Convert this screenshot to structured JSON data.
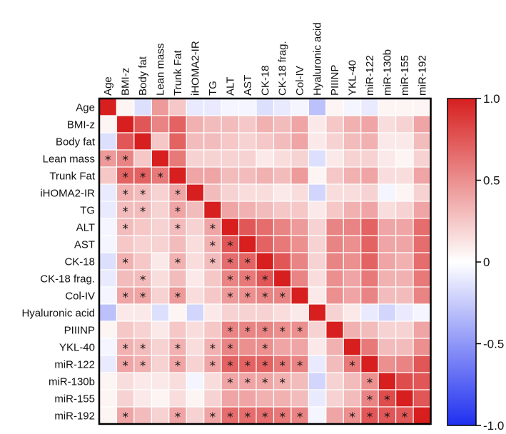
{
  "chart_data": {
    "type": "heatmap",
    "title": "",
    "variables": [
      "Age",
      "BMI-z",
      "Body fat",
      "Lean mass",
      "Trunk Fat",
      "iHOMA2-IR",
      "TG",
      "ALT",
      "AST",
      "CK-18",
      "CK-18 frag.",
      "Col-IV",
      "Hyaluronic acid",
      "PIIINP",
      "YKL-40",
      "miR-122",
      "miR-130b",
      "miR-155",
      "miR-192"
    ],
    "color_scale": {
      "min": -1.0,
      "max": 1.0,
      "ticks": [
        1.0,
        0.5,
        0,
        -0.5,
        -1.0
      ],
      "tick_labels": [
        "1.0",
        "0.5",
        "0",
        "-0.5",
        "-1.0"
      ],
      "low_color": "#1f2ff0",
      "mid_color": "#ffffff",
      "high_color": "#d71f1f"
    },
    "matrix": [
      [
        1.0,
        0.05,
        -0.15,
        0.45,
        0.25,
        -0.1,
        -0.1,
        -0.05,
        -0.05,
        -0.15,
        -0.1,
        -0.05,
        -0.3,
        0.05,
        -0.05,
        -0.1,
        0.05,
        0.05,
        0.05
      ],
      [
        0.05,
        1.0,
        0.75,
        0.55,
        0.7,
        0.35,
        0.3,
        0.3,
        0.25,
        0.35,
        0.3,
        0.4,
        0.1,
        0.25,
        0.35,
        0.4,
        0.15,
        0.2,
        0.4
      ],
      [
        -0.15,
        0.75,
        1.0,
        0.25,
        0.7,
        0.3,
        0.3,
        0.25,
        0.2,
        0.25,
        0.3,
        0.4,
        0.1,
        0.2,
        0.3,
        0.35,
        0.1,
        0.1,
        0.3
      ],
      [
        0.45,
        0.55,
        0.25,
        1.0,
        0.6,
        0.2,
        0.2,
        0.2,
        0.2,
        0.1,
        0.15,
        0.2,
        -0.15,
        0.1,
        0.2,
        0.2,
        0.1,
        0.05,
        0.2
      ],
      [
        0.25,
        0.7,
        0.7,
        0.6,
        1.0,
        0.4,
        0.4,
        0.3,
        0.3,
        0.35,
        0.3,
        0.45,
        0.05,
        0.25,
        0.35,
        0.4,
        0.15,
        0.15,
        0.4
      ],
      [
        -0.1,
        0.35,
        0.3,
        0.2,
        0.4,
        1.0,
        0.3,
        0.2,
        0.15,
        0.15,
        0.1,
        0.15,
        -0.2,
        0.15,
        0.15,
        0.2,
        -0.05,
        0.05,
        0.2
      ],
      [
        -0.1,
        0.3,
        0.3,
        0.2,
        0.4,
        0.3,
        1.0,
        0.4,
        0.35,
        0.3,
        0.25,
        0.25,
        0.1,
        0.25,
        0.35,
        0.4,
        0.15,
        0.2,
        0.4
      ],
      [
        -0.05,
        0.3,
        0.25,
        0.2,
        0.3,
        0.2,
        0.4,
        1.0,
        0.75,
        0.65,
        0.55,
        0.45,
        0.2,
        0.55,
        0.55,
        0.7,
        0.4,
        0.4,
        0.65
      ],
      [
        -0.05,
        0.25,
        0.2,
        0.2,
        0.3,
        0.15,
        0.35,
        0.75,
        1.0,
        0.7,
        0.6,
        0.5,
        0.2,
        0.55,
        0.5,
        0.7,
        0.4,
        0.4,
        0.65
      ],
      [
        -0.15,
        0.35,
        0.25,
        0.1,
        0.35,
        0.15,
        0.3,
        0.65,
        0.7,
        1.0,
        0.75,
        0.55,
        0.2,
        0.55,
        0.5,
        0.7,
        0.4,
        0.35,
        0.65
      ],
      [
        -0.1,
        0.3,
        0.3,
        0.15,
        0.3,
        0.1,
        0.25,
        0.55,
        0.6,
        0.75,
        1.0,
        0.55,
        0.15,
        0.5,
        0.4,
        0.6,
        0.35,
        0.35,
        0.6
      ],
      [
        -0.05,
        0.4,
        0.4,
        0.2,
        0.45,
        0.15,
        0.25,
        0.45,
        0.5,
        0.55,
        0.55,
        1.0,
        0.1,
        0.5,
        0.4,
        0.55,
        0.3,
        0.3,
        0.55
      ],
      [
        -0.3,
        0.1,
        0.1,
        -0.15,
        0.05,
        -0.2,
        0.1,
        0.2,
        0.2,
        0.2,
        0.15,
        0.1,
        1.0,
        0.2,
        0.1,
        -0.1,
        -0.2,
        -0.1,
        -0.05
      ],
      [
        0.05,
        0.25,
        0.2,
        0.1,
        0.25,
        0.15,
        0.25,
        0.55,
        0.55,
        0.55,
        0.5,
        0.5,
        0.2,
        1.0,
        0.35,
        0.3,
        0.2,
        0.2,
        0.4
      ],
      [
        -0.05,
        0.35,
        0.3,
        0.2,
        0.35,
        0.15,
        0.35,
        0.55,
        0.5,
        0.5,
        0.4,
        0.4,
        0.1,
        0.35,
        1.0,
        0.6,
        0.3,
        0.3,
        0.5
      ],
      [
        -0.1,
        0.4,
        0.35,
        0.2,
        0.4,
        0.2,
        0.4,
        0.7,
        0.7,
        0.7,
        0.6,
        0.55,
        -0.1,
        0.3,
        0.6,
        1.0,
        0.5,
        0.55,
        0.75
      ],
      [
        0.05,
        0.15,
        0.1,
        0.1,
        0.15,
        -0.05,
        0.15,
        0.4,
        0.4,
        0.4,
        0.35,
        0.3,
        -0.2,
        0.2,
        0.3,
        0.5,
        1.0,
        0.8,
        0.75
      ],
      [
        0.05,
        0.2,
        0.1,
        0.05,
        0.15,
        0.05,
        0.2,
        0.4,
        0.4,
        0.35,
        0.35,
        0.3,
        -0.1,
        0.2,
        0.3,
        0.55,
        0.8,
        1.0,
        0.75
      ],
      [
        0.05,
        0.4,
        0.3,
        0.2,
        0.4,
        0.2,
        0.4,
        0.65,
        0.65,
        0.65,
        0.6,
        0.55,
        -0.05,
        0.4,
        0.5,
        0.75,
        0.75,
        0.75,
        1.0
      ]
    ],
    "significance_marker": "*",
    "significant_cells": [
      [
        3,
        0
      ],
      [
        3,
        1
      ],
      [
        4,
        1
      ],
      [
        4,
        2
      ],
      [
        4,
        3
      ],
      [
        5,
        1
      ],
      [
        5,
        2
      ],
      [
        5,
        4
      ],
      [
        6,
        1
      ],
      [
        6,
        2
      ],
      [
        6,
        4
      ],
      [
        7,
        1
      ],
      [
        7,
        4
      ],
      [
        7,
        6
      ],
      [
        8,
        6
      ],
      [
        8,
        7
      ],
      [
        9,
        1
      ],
      [
        9,
        4
      ],
      [
        9,
        6
      ],
      [
        9,
        7
      ],
      [
        9,
        8
      ],
      [
        10,
        2
      ],
      [
        10,
        7
      ],
      [
        10,
        8
      ],
      [
        10,
        9
      ],
      [
        11,
        1
      ],
      [
        11,
        2
      ],
      [
        11,
        4
      ],
      [
        11,
        7
      ],
      [
        11,
        8
      ],
      [
        11,
        9
      ],
      [
        11,
        10
      ],
      [
        13,
        7
      ],
      [
        13,
        8
      ],
      [
        13,
        9
      ],
      [
        13,
        10
      ],
      [
        13,
        11
      ],
      [
        14,
        1
      ],
      [
        14,
        2
      ],
      [
        14,
        4
      ],
      [
        14,
        6
      ],
      [
        14,
        7
      ],
      [
        14,
        9
      ],
      [
        15,
        1
      ],
      [
        15,
        2
      ],
      [
        15,
        4
      ],
      [
        15,
        6
      ],
      [
        15,
        7
      ],
      [
        15,
        8
      ],
      [
        15,
        9
      ],
      [
        15,
        10
      ],
      [
        15,
        11
      ],
      [
        15,
        14
      ],
      [
        16,
        7
      ],
      [
        16,
        8
      ],
      [
        16,
        9
      ],
      [
        16,
        10
      ],
      [
        16,
        15
      ],
      [
        17,
        15
      ],
      [
        17,
        16
      ],
      [
        18,
        1
      ],
      [
        18,
        4
      ],
      [
        18,
        6
      ],
      [
        18,
        7
      ],
      [
        18,
        8
      ],
      [
        18,
        9
      ],
      [
        18,
        10
      ],
      [
        18,
        11
      ],
      [
        18,
        14
      ],
      [
        18,
        15
      ],
      [
        18,
        16
      ],
      [
        18,
        17
      ]
    ]
  }
}
